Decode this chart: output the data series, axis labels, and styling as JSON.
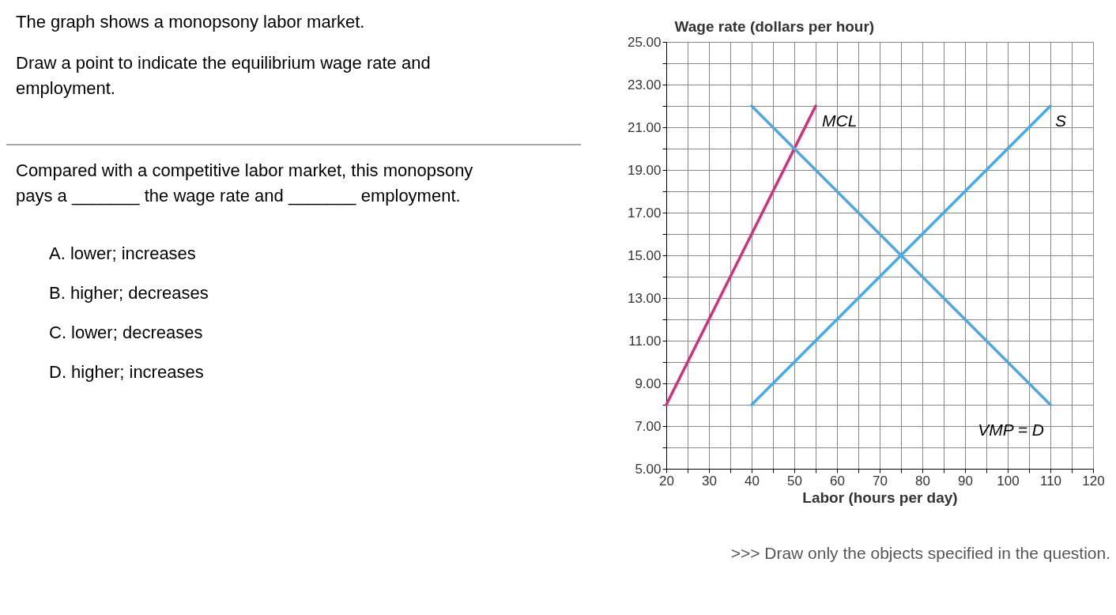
{
  "chart_data": {
    "type": "line",
    "ylabel": "Wage rate (dollars per hour)",
    "xlabel": "Labor (hours per day)",
    "xlim": [
      20,
      120
    ],
    "xticks": [
      20,
      {
        "value": 25,
        "label": null
      },
      30,
      {
        "value": 35,
        "label": null
      },
      40,
      {
        "value": 45,
        "label": null
      },
      50,
      {
        "value": 55,
        "label": null
      },
      60,
      {
        "value": 65,
        "label": null
      },
      70,
      {
        "value": 75,
        "label": null
      },
      80,
      {
        "value": 85,
        "label": null
      },
      90,
      {
        "value": 95,
        "label": null
      },
      100,
      {
        "value": 105,
        "label": null
      },
      110,
      {
        "value": 115,
        "label": null
      },
      120
    ],
    "ylim": [
      5,
      25
    ],
    "yticks": [
      {
        "value": 5,
        "label": "5.00"
      },
      {
        "value": 6,
        "label": null
      },
      {
        "value": 7,
        "label": "7.00"
      },
      {
        "value": 8,
        "label": null
      },
      {
        "value": 9,
        "label": "9.00"
      },
      {
        "value": 10,
        "label": null
      },
      {
        "value": 11,
        "label": "11.00"
      },
      {
        "value": 12,
        "label": null
      },
      {
        "value": 13,
        "label": "13.00"
      },
      {
        "value": 14,
        "label": null
      },
      {
        "value": 15,
        "label": "15.00"
      },
      {
        "value": 16,
        "label": null
      },
      {
        "value": 17,
        "label": "17.00"
      },
      {
        "value": 18,
        "label": null
      },
      {
        "value": 19,
        "label": "19.00"
      },
      {
        "value": 20,
        "label": null
      },
      {
        "value": 21,
        "label": "21.00"
      },
      {
        "value": 22,
        "label": null
      },
      {
        "value": 23,
        "label": "23.00"
      },
      {
        "value": 24,
        "label": null
      },
      {
        "value": 25,
        "label": "25.00"
      }
    ],
    "grid": true,
    "marker": "none",
    "line_style": "solid",
    "series": [
      {
        "name": "MCL",
        "color": "#d3307a",
        "x": [
          20,
          55
        ],
        "values": [
          8,
          22
        ]
      },
      {
        "name": "S",
        "color": "#4aa8e6",
        "x": [
          40,
          110
        ],
        "values": [
          8,
          22
        ]
      },
      {
        "name": "VMP = D",
        "color": "#4aa8e6",
        "x": [
          40,
          110
        ],
        "values": [
          22,
          8
        ]
      }
    ],
    "annotations": [
      "The graph shows a monopsony labor market.",
      "Draw a point to indicate the equilibrium wage rate and\nemployment.",
      "Compared with a competitive labor market, this monopsony\npays a _______ the wage rate and _______ employment.",
      "A. lower; increases",
      "B. higher; decreases",
      "C. lower; decreases",
      "D. higher; increases",
      ">>> Draw only the objects specified in the question."
    ]
  }
}
